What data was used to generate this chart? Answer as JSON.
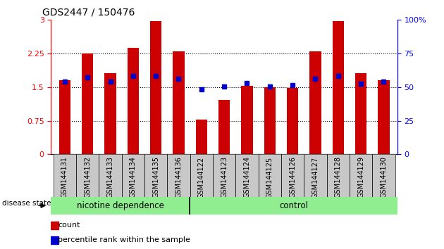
{
  "title": "GDS2447 / 150476",
  "samples": [
    "GSM144131",
    "GSM144132",
    "GSM144133",
    "GSM144134",
    "GSM144135",
    "GSM144136",
    "GSM144122",
    "GSM144123",
    "GSM144124",
    "GSM144125",
    "GSM144126",
    "GSM144127",
    "GSM144128",
    "GSM144129",
    "GSM144130"
  ],
  "red_values": [
    1.65,
    2.25,
    1.82,
    2.38,
    2.97,
    2.3,
    0.77,
    1.22,
    1.53,
    1.5,
    1.48,
    2.3,
    2.97,
    1.82,
    1.65
  ],
  "blue_values": [
    1.62,
    1.72,
    1.62,
    1.75,
    1.75,
    1.68,
    1.45,
    1.52,
    1.6,
    1.52,
    1.55,
    1.68,
    1.75,
    1.58,
    1.62
  ],
  "groups": [
    {
      "label": "nicotine dependence",
      "n": 6,
      "color": "#90ee90"
    },
    {
      "label": "control",
      "n": 9,
      "color": "#90ee90"
    }
  ],
  "group_separator_after": 6,
  "ylim_left": [
    0,
    3
  ],
  "ylim_right": [
    0,
    100
  ],
  "yticks_left": [
    0,
    0.75,
    1.5,
    2.25,
    3
  ],
  "yticks_right": [
    0,
    25,
    50,
    75,
    100
  ],
  "bar_color": "#cc0000",
  "dot_color": "#0000cc",
  "label_bg_color": "#c8c8c8",
  "disease_label": "disease state",
  "legend_count": "count",
  "legend_percentile": "percentile rank within the sample",
  "bar_width": 0.5,
  "title_fontsize": 10,
  "tick_fontsize": 7,
  "axis_fontsize": 8
}
